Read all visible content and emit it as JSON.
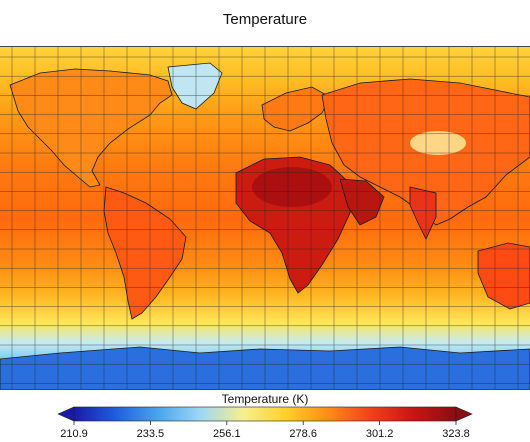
{
  "title": "Temperature",
  "colorbar": {
    "label": "Temperature (K)",
    "ticks": [
      "210.9",
      "233.5",
      "256.1",
      "278.6",
      "301.2",
      "323.8"
    ],
    "min": 210.9,
    "max": 323.8,
    "colormap": [
      "#1a1aa6",
      "#1f5fe0",
      "#4aa6ee",
      "#9fd8f4",
      "#f6f08a",
      "#ffcf2a",
      "#ff8a16",
      "#f2401a",
      "#c81414",
      "#8b0d14"
    ]
  },
  "map": {
    "projection": "equirectangular",
    "gridlines": true,
    "coastlines": true
  }
}
